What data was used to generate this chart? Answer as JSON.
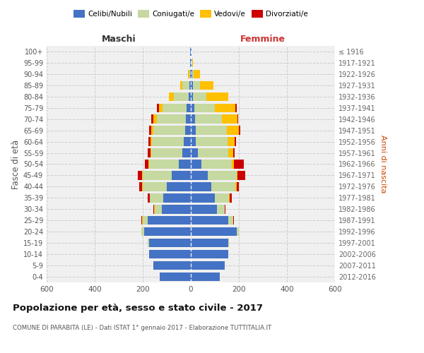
{
  "age_groups": [
    "0-4",
    "5-9",
    "10-14",
    "15-19",
    "20-24",
    "25-29",
    "30-34",
    "35-39",
    "40-44",
    "45-49",
    "50-54",
    "55-59",
    "60-64",
    "65-69",
    "70-74",
    "75-79",
    "80-84",
    "85-89",
    "90-94",
    "95-99",
    "100+"
  ],
  "birth_years": [
    "2012-2016",
    "2007-2011",
    "2002-2006",
    "1997-2001",
    "1992-1996",
    "1987-1991",
    "1982-1986",
    "1977-1981",
    "1972-1976",
    "1967-1971",
    "1962-1966",
    "1957-1961",
    "1952-1956",
    "1947-1951",
    "1942-1946",
    "1937-1941",
    "1932-1936",
    "1927-1931",
    "1922-1926",
    "1917-1921",
    "≤ 1916"
  ],
  "males": {
    "celibi": [
      130,
      155,
      175,
      175,
      195,
      180,
      120,
      115,
      100,
      80,
      50,
      35,
      28,
      25,
      22,
      18,
      10,
      5,
      2,
      2,
      2
    ],
    "coniugati": [
      0,
      0,
      0,
      5,
      10,
      20,
      30,
      55,
      100,
      120,
      125,
      130,
      135,
      130,
      120,
      100,
      60,
      30,
      5,
      2,
      1
    ],
    "vedovi": [
      0,
      0,
      0,
      0,
      0,
      3,
      2,
      2,
      2,
      2,
      2,
      3,
      5,
      10,
      15,
      15,
      20,
      10,
      5,
      0,
      0
    ],
    "divorziati": [
      0,
      0,
      0,
      0,
      0,
      2,
      3,
      8,
      12,
      18,
      15,
      10,
      8,
      8,
      8,
      8,
      0,
      0,
      0,
      0,
      0
    ]
  },
  "females": {
    "nubili": [
      120,
      140,
      155,
      155,
      190,
      155,
      110,
      100,
      85,
      70,
      45,
      30,
      22,
      20,
      18,
      15,
      10,
      8,
      5,
      3,
      2
    ],
    "coniugate": [
      0,
      0,
      0,
      5,
      10,
      20,
      30,
      60,
      100,
      120,
      125,
      125,
      130,
      130,
      110,
      85,
      55,
      30,
      8,
      2,
      0
    ],
    "vedove": [
      0,
      0,
      0,
      0,
      0,
      2,
      2,
      3,
      5,
      5,
      10,
      20,
      30,
      50,
      65,
      85,
      90,
      55,
      25,
      5,
      1
    ],
    "divorziate": [
      0,
      0,
      0,
      0,
      0,
      2,
      3,
      8,
      10,
      30,
      40,
      8,
      5,
      5,
      5,
      5,
      0,
      0,
      0,
      0,
      0
    ]
  },
  "colors": {
    "celibi": "#4472c4",
    "coniugati": "#c5d9a0",
    "vedovi": "#ffc000",
    "divorziati": "#cc0000"
  },
  "title": "Popolazione per età, sesso e stato civile - 2017",
  "subtitle": "COMUNE DI PARABITA (LE) - Dati ISTAT 1° gennaio 2017 - Elaborazione TUTTITALIA.IT",
  "ylabel_left": "Fasce di età",
  "ylabel_right": "Anni di nascita",
  "legend_labels": [
    "Celibi/Nubili",
    "Coniugati/e",
    "Vedovi/e",
    "Divorziati/e"
  ],
  "bg_color": "#f0f0f0",
  "grid_color": "#cccccc"
}
